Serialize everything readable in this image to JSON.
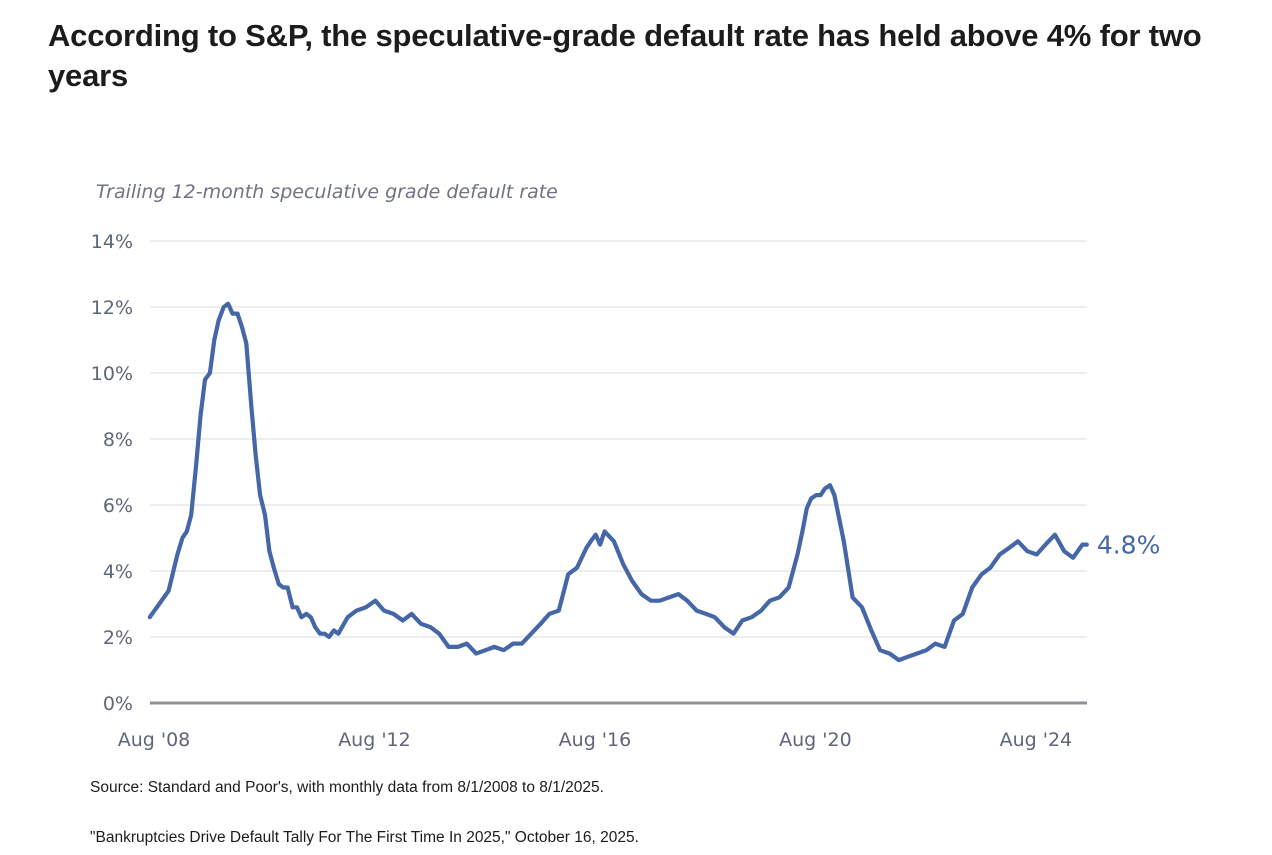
{
  "headline": "According to S&P, the speculative-grade default rate has held above 4% for two years",
  "source_note": "Source: Standard and Poor's, with monthly data from 8/1/2008 to 8/1/2025.",
  "citation_note": "\"Bankruptcies Drive Default Tally For The First Time In 2025,\" October 16, 2025.",
  "chart_data": {
    "type": "line",
    "title": "Trailing 12-month speculative grade default rate",
    "xlabel": "",
    "ylabel": "",
    "ylim": [
      0,
      14
    ],
    "xlim": [
      2008.583,
      2025.583
    ],
    "y_ticks": [
      0,
      2,
      4,
      6,
      8,
      10,
      12,
      14
    ],
    "y_tick_labels": [
      "0%",
      "2%",
      "4%",
      "6%",
      "8%",
      "10%",
      "12%",
      "14%"
    ],
    "x_ticks": [
      2008.583,
      2012.583,
      2016.583,
      2020.583,
      2024.583
    ],
    "x_tick_labels": [
      "Aug '08",
      "Aug '12",
      "Aug '16",
      "Aug '20",
      "Aug '24"
    ],
    "grid": true,
    "end_label": "4.8%",
    "color": "#4566a7",
    "series": [
      {
        "x": [
          2008.58,
          2008.75,
          2008.92,
          2009.08,
          2009.17,
          2009.25,
          2009.33,
          2009.42,
          2009.5,
          2009.58,
          2009.67,
          2009.75,
          2009.83,
          2009.92,
          2010.0,
          2010.08,
          2010.17,
          2010.25,
          2010.33,
          2010.42,
          2010.5,
          2010.58,
          2010.67,
          2010.75,
          2010.83,
          2010.92,
          2011.0,
          2011.08,
          2011.17,
          2011.25,
          2011.33,
          2011.42,
          2011.5,
          2011.58,
          2011.67,
          2011.75,
          2011.83,
          2011.92,
          2012.0,
          2012.17,
          2012.33,
          2012.5,
          2012.67,
          2012.83,
          2013.0,
          2013.17,
          2013.33,
          2013.5,
          2013.67,
          2013.83,
          2014.0,
          2014.17,
          2014.33,
          2014.5,
          2014.67,
          2014.83,
          2015.0,
          2015.17,
          2015.33,
          2015.5,
          2015.67,
          2015.83,
          2016.0,
          2016.17,
          2016.33,
          2016.5,
          2016.58,
          2016.67,
          2016.75,
          2016.83,
          2017.0,
          2017.17,
          2017.33,
          2017.5,
          2017.67,
          2017.83,
          2018.0,
          2018.17,
          2018.33,
          2018.5,
          2018.67,
          2018.83,
          2019.0,
          2019.17,
          2019.33,
          2019.5,
          2019.67,
          2019.83,
          2020.0,
          2020.17,
          2020.33,
          2020.42,
          2020.5,
          2020.58,
          2020.67,
          2020.75,
          2020.83,
          2020.92,
          2021.0,
          2021.17,
          2021.33,
          2021.5,
          2021.67,
          2021.83,
          2022.0,
          2022.17,
          2022.33,
          2022.5,
          2022.67,
          2022.83,
          2023.0,
          2023.17,
          2023.33,
          2023.5,
          2023.67,
          2023.83,
          2024.0,
          2024.17,
          2024.33,
          2024.5,
          2024.67,
          2024.83,
          2025.0,
          2025.17,
          2025.33,
          2025.5,
          2025.58
        ],
        "values": [
          2.6,
          3.0,
          3.4,
          4.5,
          5.0,
          5.2,
          5.7,
          7.2,
          8.7,
          9.8,
          10.0,
          11.0,
          11.6,
          12.0,
          12.1,
          11.8,
          11.8,
          11.4,
          10.9,
          9.0,
          7.5,
          6.3,
          5.7,
          4.6,
          4.1,
          3.6,
          3.5,
          3.5,
          2.9,
          2.9,
          2.6,
          2.7,
          2.6,
          2.3,
          2.1,
          2.1,
          2.0,
          2.2,
          2.1,
          2.6,
          2.8,
          2.9,
          3.1,
          2.8,
          2.7,
          2.5,
          2.7,
          2.4,
          2.3,
          2.1,
          1.7,
          1.7,
          1.8,
          1.5,
          1.6,
          1.7,
          1.6,
          1.8,
          1.8,
          2.1,
          2.4,
          2.7,
          2.8,
          3.9,
          4.1,
          4.7,
          4.9,
          5.1,
          4.8,
          5.2,
          4.9,
          4.2,
          3.7,
          3.3,
          3.1,
          3.1,
          3.2,
          3.3,
          3.1,
          2.8,
          2.7,
          2.6,
          2.3,
          2.1,
          2.5,
          2.6,
          2.8,
          3.1,
          3.2,
          3.5,
          4.5,
          5.2,
          5.9,
          6.2,
          6.3,
          6.3,
          6.5,
          6.6,
          6.3,
          4.9,
          3.2,
          2.9,
          2.2,
          1.6,
          1.5,
          1.3,
          1.4,
          1.5,
          1.6,
          1.8,
          1.7,
          2.5,
          2.7,
          3.5,
          3.9,
          4.1,
          4.5,
          4.7,
          4.9,
          4.6,
          4.5,
          4.8,
          5.1,
          4.6,
          4.4,
          4.8,
          4.8
        ]
      }
    ]
  }
}
